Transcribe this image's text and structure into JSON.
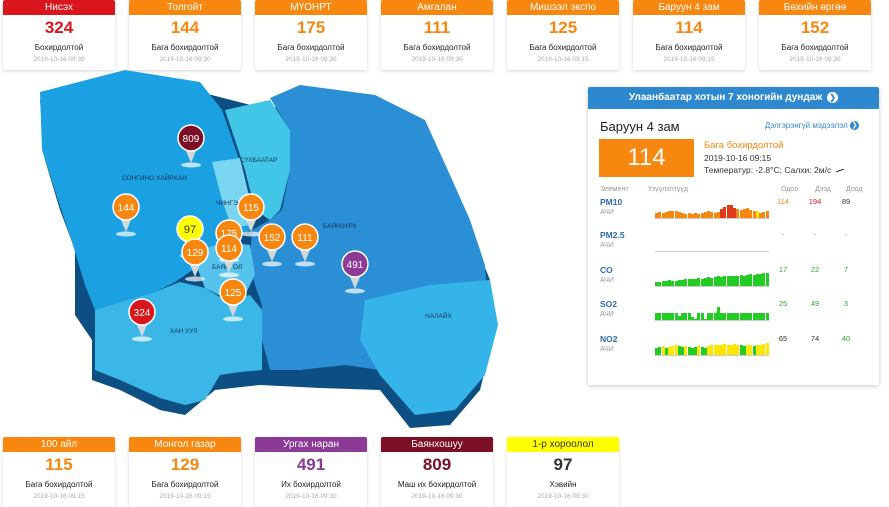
{
  "top_cards": [
    {
      "name": "Нисэх",
      "value": "324",
      "status": "Бохирдолтой",
      "time": "2019-10-16 09:30",
      "color": "#d9161c"
    },
    {
      "name": "Толгойт",
      "value": "144",
      "status": "Бага бохирдолтой",
      "time": "2019-10-16 09:30",
      "color": "#f7870f"
    },
    {
      "name": "МҮОНРТ",
      "value": "175",
      "status": "Бага бохирдолтой",
      "time": "2019-10-16 09:30",
      "color": "#f7870f"
    },
    {
      "name": "Амгалан",
      "value": "111",
      "status": "Бага бохирдолтой",
      "time": "2019-10-16 09:30",
      "color": "#f7870f"
    },
    {
      "name": "Мишээл экспо",
      "value": "125",
      "status": "Бага бохирдолтой",
      "time": "2019-10-16 09:15",
      "color": "#f7870f"
    },
    {
      "name": "Баруун 4 зам",
      "value": "114",
      "status": "Бага бохирдолтой",
      "time": "2019-10-16 09:15",
      "color": "#f7870f"
    },
    {
      "name": "Бөхийн өргөө",
      "value": "152",
      "status": "Бага бохирдолтой",
      "time": "2019-10-16 09:30",
      "color": "#f7870f"
    }
  ],
  "bottom_cards": [
    {
      "name": "100 айл",
      "value": "115",
      "status": "Бага бохирдолтой",
      "time": "2019-10-16 09:15",
      "color": "#f7870f",
      "text_color": "#ffffff"
    },
    {
      "name": "Монгол газар",
      "value": "129",
      "status": "Бага бохирдолтой",
      "time": "2019-10-16 09:15",
      "color": "#f7870f",
      "text_color": "#ffffff"
    },
    {
      "name": "Ургах наран",
      "value": "491",
      "status": "Их бохирдолтой",
      "time": "2019-10-16 09:30",
      "color": "#8b3a96",
      "text_color": "#ffffff"
    },
    {
      "name": "Баянхошуу",
      "value": "809",
      "status": "Маш их бохирдолтой",
      "time": "2019-10-16 09:30",
      "color": "#7a0f26",
      "text_color": "#ffffff"
    },
    {
      "name": "1-р хороолол",
      "value": "97",
      "status": "Хэвийн",
      "time": "2019-10-16 09:30",
      "color": "#ffff00",
      "text_color": "#333333"
    }
  ],
  "map": {
    "districts": [
      "СОНГИНО ХАЙРХАН",
      "СҮХБААТАР",
      "ЧИНГЭЛТЭЙ",
      "БАЯНЗҮРХ",
      "БАЯНГОЛ",
      "ХАН УУЛ",
      "НАЛАЙХ"
    ],
    "pins": [
      {
        "value": "809",
        "color": "#7a0f26",
        "text_color": "#ffffff"
      },
      {
        "value": "144",
        "color": "#f7870f",
        "text_color": "#ffffff"
      },
      {
        "value": "97",
        "color": "#ffff00",
        "text_color": "#333333"
      },
      {
        "value": "175",
        "color": "#f7870f",
        "text_color": "#ffffff"
      },
      {
        "value": "115",
        "color": "#f7870f",
        "text_color": "#ffffff"
      },
      {
        "value": "129",
        "color": "#f7870f",
        "text_color": "#ffffff"
      },
      {
        "value": "114",
        "color": "#f7870f",
        "text_color": "#ffffff"
      },
      {
        "value": "152",
        "color": "#f7870f",
        "text_color": "#ffffff"
      },
      {
        "value": "111",
        "color": "#f7870f",
        "text_color": "#ffffff"
      },
      {
        "value": "491",
        "color": "#8b3a96",
        "text_color": "#ffffff"
      },
      {
        "value": "125",
        "color": "#f7870f",
        "text_color": "#ffffff"
      },
      {
        "value": "324",
        "color": "#d9161c",
        "text_color": "#ffffff"
      }
    ]
  },
  "panel": {
    "title": "Улаанбаатар хотын 7 хоногийн дундаж",
    "station": "Баруун 4 зам",
    "detail_link": "Дэлгэрэнгүй мэдээлэл",
    "aqi": "114",
    "status": "Бага бохирдолтой",
    "time": "2019-10-16 09:15",
    "weather": "Температур: -2.8°C; Салхи: 2м/с",
    "columns": {
      "element": "Элемент",
      "trend": "Үзүүлэлтүүд",
      "now": "Одоо",
      "max": "Дээд",
      "min": "Доод"
    },
    "pollutants": [
      {
        "name": "PM10",
        "sub": "АЧИ",
        "now": "114",
        "max": "194",
        "min": "89",
        "now_color": "#f7870f",
        "max_color": "#d9161c",
        "min_color": "#333333",
        "bars": [
          0.35,
          0.4,
          0.35,
          0.4,
          0.45,
          0.5,
          0.45,
          0.4,
          0.35,
          0.3,
          0.35,
          0.3,
          0.35,
          0.3,
          0.35,
          0.4,
          0.45,
          0.4,
          0.35,
          0.4,
          0.6,
          0.75,
          0.9,
          0.85,
          0.7,
          0.6,
          0.55,
          0.6,
          0.65,
          0.55,
          0.5,
          0.45,
          0.35,
          0.4,
          0.45
        ],
        "bar_colors": [
          "#f7870f",
          "#f7870f",
          "#f7870f",
          "#f7870f",
          "#f7870f",
          "#f7870f",
          "#f7870f",
          "#f7870f",
          "#f7870f",
          "#f7870f",
          "#f7870f",
          "#f7870f",
          "#f7870f",
          "#f7870f",
          "#f7870f",
          "#f7870f",
          "#f7870f",
          "#f7870f",
          "#f7870f",
          "#f7870f",
          "#e03a1a",
          "#e03a1a",
          "#e03a1a",
          "#e03a1a",
          "#e03a1a",
          "#f7870f",
          "#f7870f",
          "#f7870f",
          "#f7870f",
          "#f7870f",
          "#f7870f",
          "#ffe600",
          "#f7870f",
          "#f7870f",
          "#f7870f"
        ]
      },
      {
        "name": "PM2.5",
        "sub": "АЧИ",
        "now": "-",
        "max": "-",
        "min": "-",
        "now_color": "#999999",
        "max_color": "#999999",
        "min_color": "#999999",
        "bars": [],
        "bar_colors": []
      },
      {
        "name": "CO",
        "sub": "АЧИ",
        "now": "17",
        "max": "22",
        "min": "7",
        "now_color": "#2ea82e",
        "max_color": "#2ea82e",
        "min_color": "#2ea82e",
        "bars": [
          0.3,
          0.3,
          0.35,
          0.35,
          0.4,
          0.35,
          0.35,
          0.4,
          0.4,
          0.45,
          0.45,
          0.5,
          0.5,
          0.55,
          0.5,
          0.55,
          0.6,
          0.55,
          0.6,
          0.65,
          0.6,
          0.65,
          0.7,
          0.65,
          0.7,
          0.7,
          0.75,
          0.7,
          0.75,
          0.8,
          0.75,
          0.8,
          0.8,
          0.85,
          0.85
        ],
        "bar_colors": [
          "#22cc22"
        ]
      },
      {
        "name": "SO2",
        "sub": "АЧИ",
        "now": "25",
        "max": "49",
        "min": "3",
        "now_color": "#2ea82e",
        "max_color": "#2ea82e",
        "min_color": "#2ea82e",
        "bars": [
          0.5,
          0.45,
          0.5,
          0.5,
          0.45,
          0.5,
          0.5,
          0.3,
          0.5,
          0.5,
          0.45,
          0.2,
          0.1,
          0.5,
          0.5,
          0.1,
          0.45,
          0.5,
          0.5,
          0.9,
          0.5,
          0.5,
          0.45,
          0.5,
          0.5,
          0.5,
          0.45,
          0.5,
          0.5,
          0.5,
          0.45,
          0.5,
          0.5,
          0.45,
          0.5
        ],
        "bar_colors": [
          "#22cc22"
        ]
      },
      {
        "name": "NO2",
        "sub": "АЧИ",
        "now": "65",
        "max": "74",
        "min": "40",
        "now_color": "#333333",
        "max_color": "#333333",
        "min_color": "#2ea82e",
        "bars": [
          0.5,
          0.55,
          0.6,
          0.5,
          0.55,
          0.6,
          0.65,
          0.6,
          0.55,
          0.6,
          0.55,
          0.5,
          0.55,
          0.6,
          0.55,
          0.5,
          0.6,
          0.65,
          0.7,
          0.65,
          0.7,
          0.75,
          0.7,
          0.7,
          0.75,
          0.7,
          0.65,
          0.6,
          0.7,
          0.65,
          0.6,
          0.65,
          0.7,
          0.75,
          0.8
        ],
        "bar_colors": [
          "#22cc22",
          "#22cc22",
          "#ffe600",
          "#22cc22",
          "#ffe600",
          "#ffe600",
          "#ffe600",
          "#22cc22",
          "#22cc22",
          "#ffe600",
          "#22cc22",
          "#22cc22",
          "#22cc22",
          "#ffe600",
          "#22cc22",
          "#22cc22",
          "#ffe600",
          "#ffe600",
          "#ffe600",
          "#ffe600",
          "#ffe600",
          "#ffe600",
          "#ffe600",
          "#ffe600",
          "#ffe600",
          "#ffe600",
          "#22cc22",
          "#22cc22",
          "#ffe600",
          "#ffe600",
          "#22cc22",
          "#ffe600",
          "#ffe600",
          "#ffe600",
          "#ffe600"
        ]
      }
    ]
  }
}
